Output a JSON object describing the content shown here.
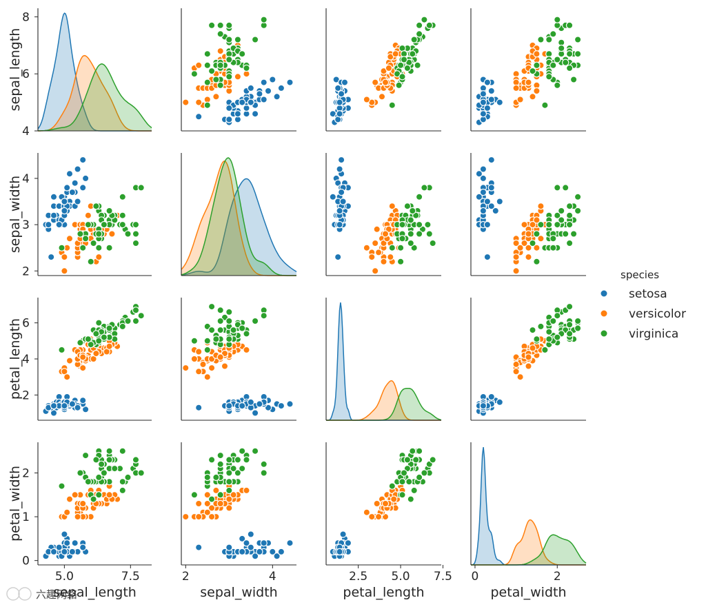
{
  "chart_data": {
    "type": "scatter",
    "kind": "pairplot",
    "variables": [
      "sepal_length",
      "sepal_width",
      "petal_length",
      "petal_width"
    ],
    "diagonal": "kde",
    "grid": false,
    "legend": {
      "title": "species",
      "placement": "right",
      "entries": [
        {
          "label": "setosa",
          "color": "#1f77b4"
        },
        {
          "label": "versicolor",
          "color": "#ff7f0e"
        },
        {
          "label": "virginica",
          "color": "#2ca02c"
        }
      ]
    },
    "axes": {
      "sepal_length": {
        "range": [
          4.0,
          8.3
        ],
        "ticks": [
          {
            "v": 5,
            "label": "5.0"
          },
          {
            "v": 7.5,
            "label": "7.5"
          }
        ],
        "yticks": [
          {
            "v": 4,
            "label": "4"
          },
          {
            "v": 6,
            "label": "6"
          },
          {
            "v": 8,
            "label": "8"
          }
        ]
      },
      "sepal_width": {
        "range": [
          1.9,
          4.55
        ],
        "ticks": [
          {
            "v": 2,
            "label": "2"
          },
          {
            "v": 4,
            "label": "4"
          }
        ],
        "yticks": [
          {
            "v": 2,
            "label": "2"
          },
          {
            "v": 3,
            "label": "3"
          },
          {
            "v": 4,
            "label": "4"
          }
        ]
      },
      "petal_length": {
        "range": [
          0.6,
          7.4
        ],
        "ticks": [
          {
            "v": 2.5,
            "label": "2.5"
          },
          {
            "v": 5,
            "label": "5.0"
          },
          {
            "v": 7.5,
            "label": "7.5"
          }
        ],
        "yticks": [
          {
            "v": 2,
            "label": "2"
          },
          {
            "v": 4,
            "label": "4"
          },
          {
            "v": 6,
            "label": "6"
          }
        ]
      },
      "petal_width": {
        "range": [
          -0.1,
          2.7
        ],
        "ticks": [
          {
            "v": 0,
            "label": "0"
          },
          {
            "v": 2,
            "label": "2"
          }
        ],
        "yticks": [
          {
            "v": 0,
            "label": "0"
          },
          {
            "v": 1,
            "label": "1"
          },
          {
            "v": 2,
            "label": "2"
          }
        ]
      }
    },
    "series": [
      {
        "name": "setosa",
        "color": "#1f77b4",
        "points": [
          [
            5.1,
            3.5,
            1.4,
            0.2
          ],
          [
            4.9,
            3.0,
            1.4,
            0.2
          ],
          [
            4.7,
            3.2,
            1.3,
            0.2
          ],
          [
            4.6,
            3.1,
            1.5,
            0.2
          ],
          [
            5.0,
            3.6,
            1.4,
            0.2
          ],
          [
            5.4,
            3.9,
            1.7,
            0.4
          ],
          [
            4.6,
            3.4,
            1.4,
            0.3
          ],
          [
            5.0,
            3.4,
            1.5,
            0.2
          ],
          [
            4.4,
            2.9,
            1.4,
            0.2
          ],
          [
            4.9,
            3.1,
            1.5,
            0.1
          ],
          [
            5.4,
            3.7,
            1.5,
            0.2
          ],
          [
            4.8,
            3.4,
            1.6,
            0.2
          ],
          [
            4.8,
            3.0,
            1.4,
            0.1
          ],
          [
            4.3,
            3.0,
            1.1,
            0.1
          ],
          [
            5.8,
            4.0,
            1.2,
            0.2
          ],
          [
            5.7,
            4.4,
            1.5,
            0.4
          ],
          [
            5.4,
            3.9,
            1.3,
            0.4
          ],
          [
            5.1,
            3.5,
            1.4,
            0.3
          ],
          [
            5.7,
            3.8,
            1.7,
            0.3
          ],
          [
            5.1,
            3.8,
            1.5,
            0.3
          ],
          [
            5.4,
            3.4,
            1.7,
            0.2
          ],
          [
            5.1,
            3.7,
            1.5,
            0.4
          ],
          [
            4.6,
            3.6,
            1.0,
            0.2
          ],
          [
            5.1,
            3.3,
            1.7,
            0.5
          ],
          [
            4.8,
            3.4,
            1.9,
            0.2
          ],
          [
            5.0,
            3.0,
            1.6,
            0.2
          ],
          [
            5.0,
            3.4,
            1.6,
            0.4
          ],
          [
            5.2,
            3.5,
            1.5,
            0.2
          ],
          [
            5.2,
            3.4,
            1.4,
            0.2
          ],
          [
            4.7,
            3.2,
            1.6,
            0.2
          ],
          [
            4.8,
            3.1,
            1.6,
            0.2
          ],
          [
            5.4,
            3.4,
            1.5,
            0.4
          ],
          [
            5.2,
            4.1,
            1.5,
            0.1
          ],
          [
            5.5,
            4.2,
            1.4,
            0.2
          ],
          [
            4.9,
            3.1,
            1.5,
            0.2
          ],
          [
            5.0,
            3.2,
            1.2,
            0.2
          ],
          [
            5.5,
            3.5,
            1.3,
            0.2
          ],
          [
            4.9,
            3.6,
            1.4,
            0.1
          ],
          [
            4.4,
            3.0,
            1.3,
            0.2
          ],
          [
            5.1,
            3.4,
            1.5,
            0.2
          ],
          [
            5.0,
            3.5,
            1.3,
            0.3
          ],
          [
            4.5,
            2.3,
            1.3,
            0.3
          ],
          [
            4.4,
            3.2,
            1.3,
            0.2
          ],
          [
            5.0,
            3.5,
            1.6,
            0.6
          ],
          [
            5.1,
            3.8,
            1.9,
            0.4
          ],
          [
            4.8,
            3.0,
            1.4,
            0.3
          ],
          [
            5.1,
            3.8,
            1.6,
            0.2
          ],
          [
            4.6,
            3.2,
            1.4,
            0.2
          ],
          [
            5.3,
            3.7,
            1.5,
            0.2
          ],
          [
            5.0,
            3.3,
            1.4,
            0.2
          ]
        ]
      },
      {
        "name": "versicolor",
        "color": "#ff7f0e",
        "points": [
          [
            7.0,
            3.2,
            4.7,
            1.4
          ],
          [
            6.4,
            3.2,
            4.5,
            1.5
          ],
          [
            6.9,
            3.1,
            4.9,
            1.5
          ],
          [
            5.5,
            2.3,
            4.0,
            1.3
          ],
          [
            6.5,
            2.8,
            4.6,
            1.5
          ],
          [
            5.7,
            2.8,
            4.5,
            1.3
          ],
          [
            6.3,
            3.3,
            4.7,
            1.6
          ],
          [
            4.9,
            2.4,
            3.3,
            1.0
          ],
          [
            6.6,
            2.9,
            4.6,
            1.3
          ],
          [
            5.2,
            2.7,
            3.9,
            1.4
          ],
          [
            5.0,
            2.0,
            3.5,
            1.0
          ],
          [
            5.9,
            3.0,
            4.2,
            1.5
          ],
          [
            6.0,
            2.2,
            4.0,
            1.0
          ],
          [
            6.1,
            2.9,
            4.7,
            1.4
          ],
          [
            5.6,
            2.9,
            3.6,
            1.3
          ],
          [
            6.7,
            3.1,
            4.4,
            1.4
          ],
          [
            5.6,
            3.0,
            4.5,
            1.5
          ],
          [
            5.8,
            2.7,
            4.1,
            1.0
          ],
          [
            6.2,
            2.2,
            4.5,
            1.5
          ],
          [
            5.6,
            2.5,
            3.9,
            1.1
          ],
          [
            5.9,
            3.2,
            4.8,
            1.8
          ],
          [
            6.1,
            2.8,
            4.0,
            1.3
          ],
          [
            6.3,
            2.5,
            4.9,
            1.5
          ],
          [
            6.1,
            2.8,
            4.7,
            1.2
          ],
          [
            6.4,
            2.9,
            4.3,
            1.3
          ],
          [
            6.6,
            3.0,
            4.4,
            1.4
          ],
          [
            6.8,
            2.8,
            4.8,
            1.4
          ],
          [
            6.7,
            3.0,
            5.0,
            1.7
          ],
          [
            6.0,
            2.9,
            4.5,
            1.5
          ],
          [
            5.7,
            2.6,
            3.5,
            1.0
          ],
          [
            5.5,
            2.4,
            3.8,
            1.1
          ],
          [
            5.5,
            2.4,
            3.7,
            1.0
          ],
          [
            5.8,
            2.7,
            3.9,
            1.2
          ],
          [
            6.0,
            2.7,
            5.1,
            1.6
          ],
          [
            5.4,
            3.0,
            4.5,
            1.5
          ],
          [
            6.0,
            3.4,
            4.5,
            1.6
          ],
          [
            6.7,
            3.1,
            4.7,
            1.5
          ],
          [
            6.3,
            2.3,
            4.4,
            1.3
          ],
          [
            5.6,
            3.0,
            4.1,
            1.3
          ],
          [
            5.5,
            2.5,
            4.0,
            1.3
          ],
          [
            5.5,
            2.6,
            4.4,
            1.2
          ],
          [
            6.1,
            3.0,
            4.6,
            1.4
          ],
          [
            5.8,
            2.6,
            4.0,
            1.2
          ],
          [
            5.0,
            2.3,
            3.3,
            1.0
          ],
          [
            5.6,
            2.7,
            4.2,
            1.3
          ],
          [
            5.7,
            3.0,
            4.2,
            1.2
          ],
          [
            5.7,
            2.9,
            4.2,
            1.3
          ],
          [
            6.2,
            2.9,
            4.3,
            1.3
          ],
          [
            5.1,
            2.5,
            3.0,
            1.1
          ],
          [
            5.7,
            2.8,
            4.1,
            1.3
          ]
        ]
      },
      {
        "name": "virginica",
        "color": "#2ca02c",
        "points": [
          [
            6.3,
            3.3,
            6.0,
            2.5
          ],
          [
            5.8,
            2.7,
            5.1,
            1.9
          ],
          [
            7.1,
            3.0,
            5.9,
            2.1
          ],
          [
            6.3,
            2.9,
            5.6,
            1.8
          ],
          [
            6.5,
            3.0,
            5.8,
            2.2
          ],
          [
            7.6,
            3.0,
            6.6,
            2.1
          ],
          [
            4.9,
            2.5,
            4.5,
            1.7
          ],
          [
            7.3,
            2.9,
            6.3,
            1.8
          ],
          [
            6.7,
            2.5,
            5.8,
            1.8
          ],
          [
            7.2,
            3.6,
            6.1,
            2.5
          ],
          [
            6.5,
            3.2,
            5.1,
            2.0
          ],
          [
            6.4,
            2.7,
            5.3,
            1.9
          ],
          [
            6.8,
            3.0,
            5.5,
            2.1
          ],
          [
            5.7,
            2.5,
            5.0,
            2.0
          ],
          [
            5.8,
            2.8,
            5.1,
            2.4
          ],
          [
            6.4,
            3.2,
            5.3,
            2.3
          ],
          [
            6.5,
            3.0,
            5.5,
            1.8
          ],
          [
            7.7,
            3.8,
            6.7,
            2.2
          ],
          [
            7.7,
            2.6,
            6.9,
            2.3
          ],
          [
            6.0,
            2.2,
            5.0,
            1.5
          ],
          [
            6.9,
            3.2,
            5.7,
            2.3
          ],
          [
            5.6,
            2.8,
            4.9,
            2.0
          ],
          [
            7.7,
            2.8,
            6.7,
            2.0
          ],
          [
            6.3,
            2.7,
            4.9,
            1.8
          ],
          [
            6.7,
            3.3,
            5.7,
            2.1
          ],
          [
            7.2,
            3.2,
            6.0,
            1.8
          ],
          [
            6.2,
            2.8,
            4.8,
            1.8
          ],
          [
            6.1,
            3.0,
            4.9,
            1.8
          ],
          [
            6.4,
            2.8,
            5.6,
            2.1
          ],
          [
            7.2,
            3.0,
            5.8,
            1.6
          ],
          [
            7.4,
            2.8,
            6.1,
            1.9
          ],
          [
            7.9,
            3.8,
            6.4,
            2.0
          ],
          [
            6.4,
            2.8,
            5.6,
            2.2
          ],
          [
            6.3,
            2.8,
            5.1,
            1.5
          ],
          [
            6.1,
            2.6,
            5.6,
            1.4
          ],
          [
            7.7,
            3.0,
            6.1,
            2.3
          ],
          [
            6.3,
            3.4,
            5.6,
            2.4
          ],
          [
            6.4,
            3.1,
            5.5,
            1.8
          ],
          [
            6.0,
            3.0,
            4.8,
            1.8
          ],
          [
            6.9,
            3.1,
            5.4,
            2.1
          ],
          [
            6.7,
            3.1,
            5.6,
            2.4
          ],
          [
            6.9,
            3.1,
            5.1,
            2.3
          ],
          [
            5.8,
            2.7,
            5.1,
            1.9
          ],
          [
            6.8,
            3.2,
            5.9,
            2.3
          ],
          [
            6.7,
            3.3,
            5.7,
            2.5
          ],
          [
            6.7,
            3.0,
            5.2,
            2.3
          ],
          [
            6.3,
            2.5,
            5.0,
            1.9
          ],
          [
            6.5,
            3.0,
            5.2,
            2.0
          ],
          [
            6.2,
            3.4,
            5.4,
            2.3
          ],
          [
            5.9,
            3.0,
            5.1,
            1.8
          ]
        ]
      }
    ]
  },
  "watermark": "六趣网络"
}
